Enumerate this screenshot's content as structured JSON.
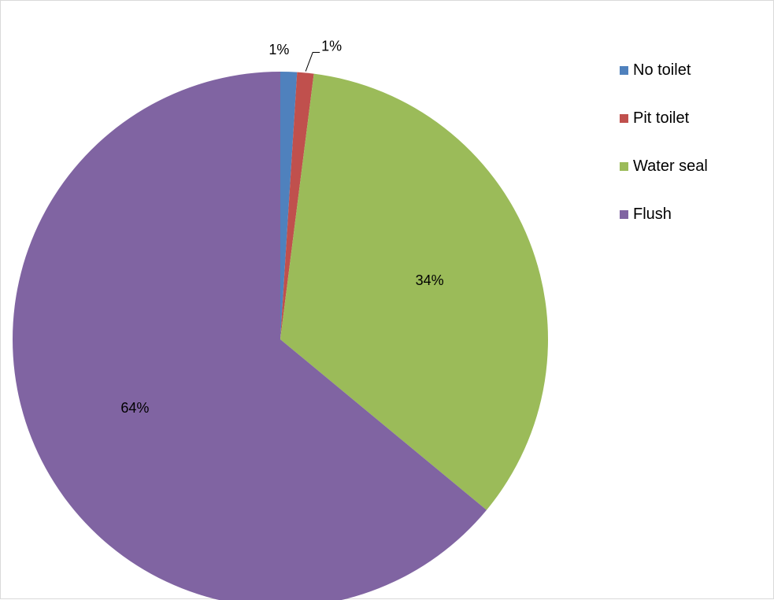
{
  "chart_data": {
    "type": "pie",
    "title": "",
    "legend_position": "right",
    "categories": [
      "No toilet",
      "Pit toilet",
      "Water seal",
      "Flush"
    ],
    "values": [
      1,
      1,
      34,
      64
    ],
    "labels": [
      "1%",
      "1%",
      "34%",
      "64%"
    ],
    "colors": [
      "#4F81BD",
      "#C0504D",
      "#9BBB59",
      "#8064A2"
    ]
  }
}
